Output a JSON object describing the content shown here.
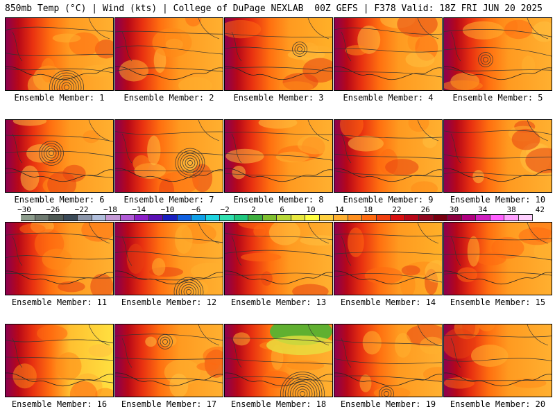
{
  "header": {
    "left": "850mb Temp (°C) | Wind (kts) | College of DuPage NEXLAB",
    "right": "00Z GEFS | F378 Valid: 18Z FRI JUN 20 2025"
  },
  "colorbar": {
    "labels": [
      "−30",
      "−26",
      "−22",
      "−18",
      "−14",
      "−10",
      "−6",
      "−2",
      "2",
      "6",
      "10",
      "14",
      "18",
      "22",
      "26",
      "30",
      "34",
      "38",
      "42"
    ],
    "colors": [
      "#8c9c8c",
      "#6e7a70",
      "#4f5a55",
      "#3b4a58",
      "#8c96aa",
      "#b0bedb",
      "#c49ad6",
      "#b05bd6",
      "#8c20c8",
      "#5a10b4",
      "#1a20c0",
      "#1060e0",
      "#10a0e8",
      "#20d4e0",
      "#30e0b0",
      "#20c880",
      "#40b040",
      "#80c030",
      "#b8d838",
      "#e8e840",
      "#ffff40",
      "#ffd040",
      "#ffb030",
      "#ff9020",
      "#ff6a10",
      "#f04010",
      "#d81010",
      "#b80818",
      "#900820",
      "#780010",
      "#8c0040",
      "#b00080",
      "#d020c0",
      "#ff60ff",
      "#ffa0ff",
      "#ffd0ff"
    ]
  },
  "panels": [
    {
      "label": "Ensemble Member: 1"
    },
    {
      "label": "Ensemble Member: 2"
    },
    {
      "label": "Ensemble Member: 3"
    },
    {
      "label": "Ensemble Member: 4"
    },
    {
      "label": "Ensemble Member: 5"
    },
    {
      "label": "Ensemble Member: 6"
    },
    {
      "label": "Ensemble Member: 7"
    },
    {
      "label": "Ensemble Member: 8"
    },
    {
      "label": "Ensemble Member: 9"
    },
    {
      "label": "Ensemble Member: 10"
    },
    {
      "label": "Ensemble Member: 11"
    },
    {
      "label": "Ensemble Member: 12"
    },
    {
      "label": "Ensemble Member: 13"
    },
    {
      "label": "Ensemble Member: 14"
    },
    {
      "label": "Ensemble Member: 15"
    },
    {
      "label": "Ensemble Member: 16"
    },
    {
      "label": "Ensemble Member: 17"
    },
    {
      "label": "Ensemble Member: 18"
    },
    {
      "label": "Ensemble Member: 19"
    },
    {
      "label": "Ensemble Member: 20"
    }
  ]
}
